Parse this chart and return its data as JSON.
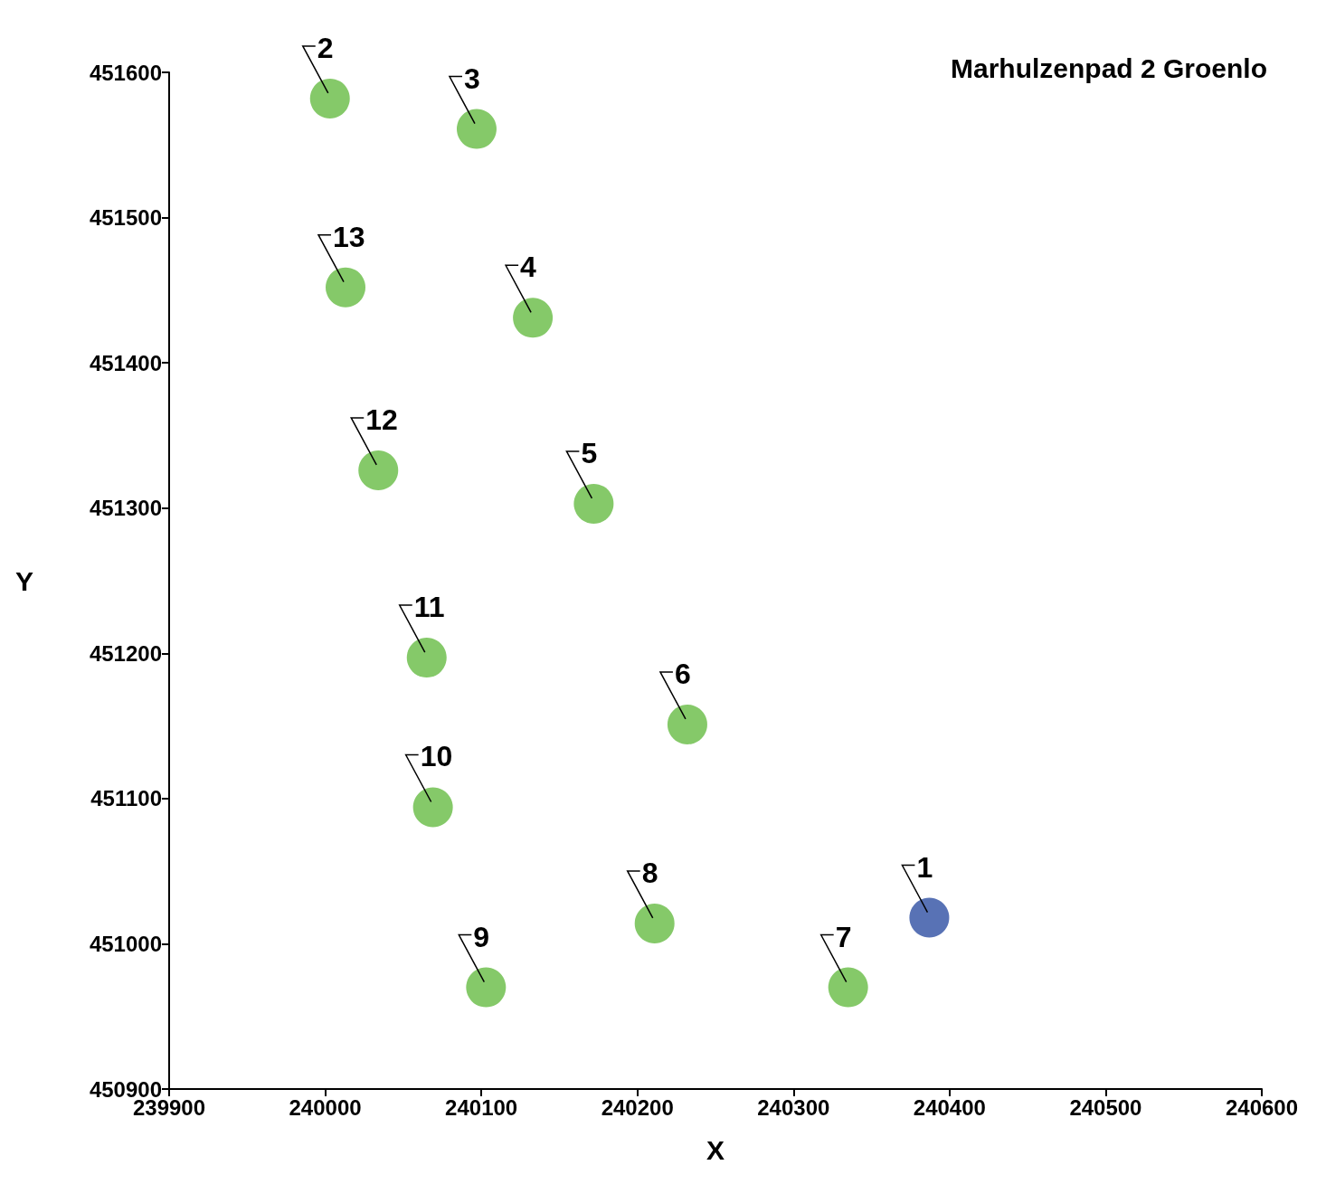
{
  "chart_data": {
    "type": "scatter",
    "title": "Marhulzenpad 2 Groenlo",
    "xlabel": "X",
    "ylabel": "Y",
    "x": [
      240387,
      240003,
      240097,
      240133,
      240172,
      240232,
      240335,
      240211,
      240103,
      240069,
      240065,
      240034,
      240013
    ],
    "values": [
      451018,
      451582,
      451561,
      451431,
      451303,
      451151,
      450970,
      451014,
      450970,
      451094,
      451197,
      451326,
      451452
    ],
    "colors": [
      "#2e4fa3",
      "#66bb44",
      "#66bb44",
      "#66bb44",
      "#66bb44",
      "#66bb44",
      "#66bb44",
      "#66bb44",
      "#66bb44",
      "#66bb44",
      "#66bb44",
      "#66bb44",
      "#66bb44"
    ],
    "annotations": [
      {
        "text": "1",
        "x": 240387,
        "y": 451018
      },
      {
        "text": "2",
        "x": 240003,
        "y": 451582
      },
      {
        "text": "3",
        "x": 240097,
        "y": 451561
      },
      {
        "text": "4",
        "x": 240133,
        "y": 451431
      },
      {
        "text": "5",
        "x": 240172,
        "y": 451303
      },
      {
        "text": "6",
        "x": 240232,
        "y": 451151
      },
      {
        "text": "7",
        "x": 240335,
        "y": 450970
      },
      {
        "text": "8",
        "x": 240211,
        "y": 451014
      },
      {
        "text": "9",
        "x": 240103,
        "y": 450970
      },
      {
        "text": "10",
        "x": 240069,
        "y": 451094
      },
      {
        "text": "11",
        "x": 240065,
        "y": 451197
      },
      {
        "text": "12",
        "x": 240034,
        "y": 451326
      },
      {
        "text": "13",
        "x": 240013,
        "y": 451452
      }
    ],
    "xlim": [
      239900,
      240600
    ],
    "xticks": [
      239900,
      240000,
      240100,
      240200,
      240300,
      240400,
      240500,
      240600
    ],
    "ylim": [
      450900,
      451600
    ],
    "yticks": [
      450900,
      451000,
      451100,
      451200,
      451300,
      451400,
      451500,
      451600
    ],
    "marker": "circle",
    "grid": false
  }
}
